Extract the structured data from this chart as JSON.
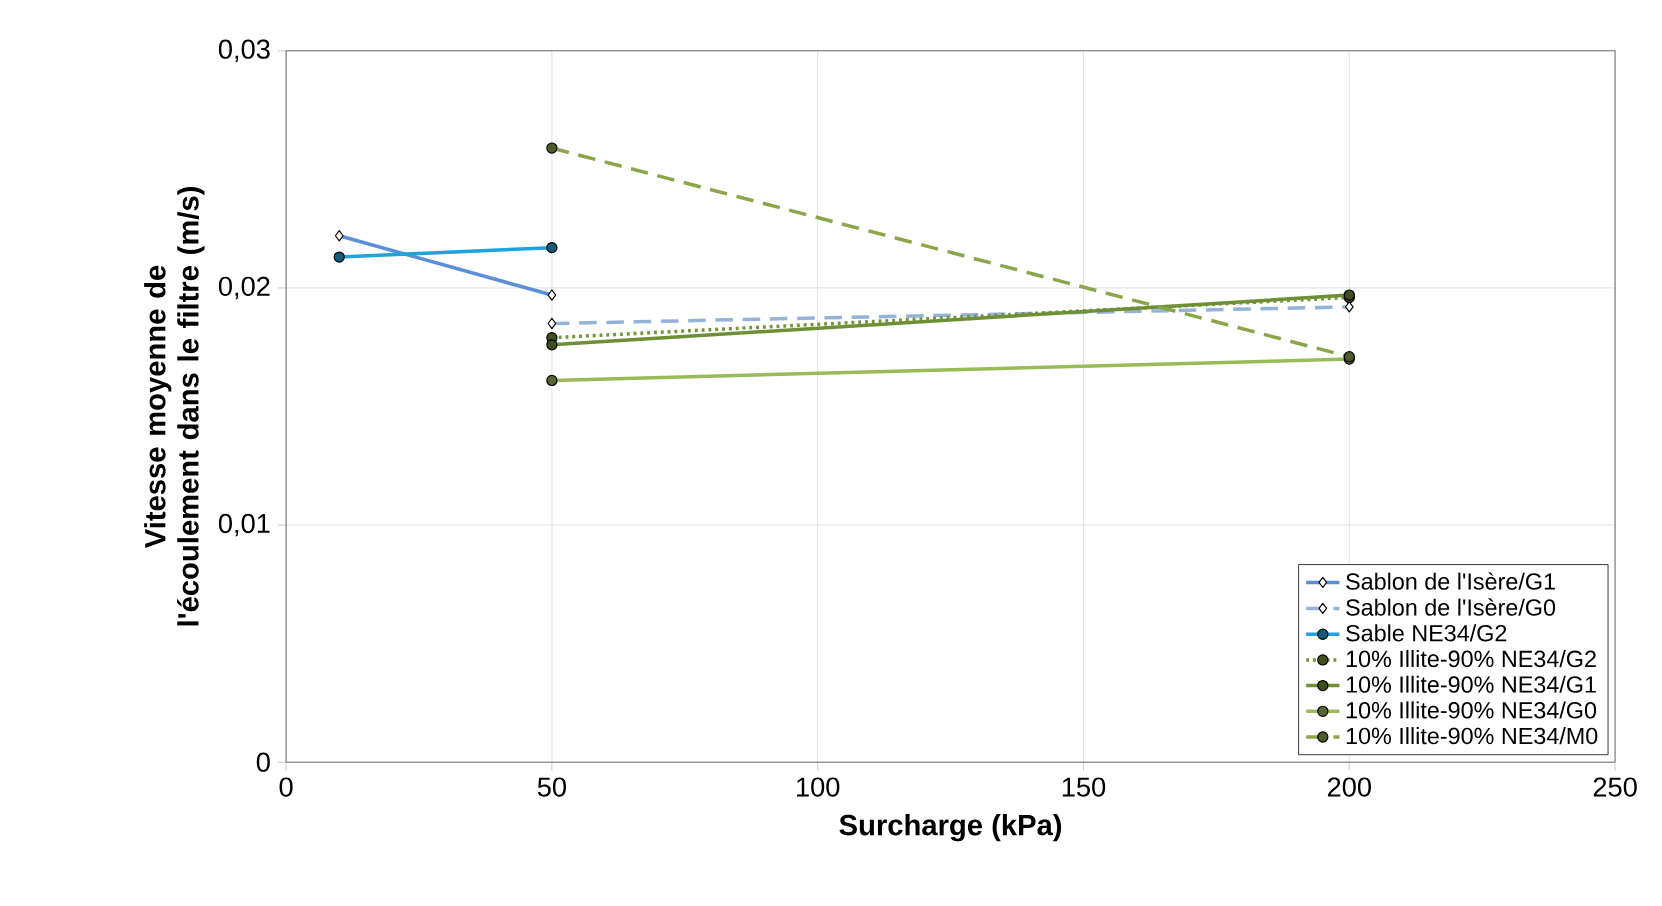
{
  "chart_data": {
    "type": "line",
    "xlabel": "Surcharge (kPa)",
    "ylabel": "Vitesse moyenne de l'écoulement dans le filtre (m/s)",
    "xlim": [
      0,
      250
    ],
    "xticks": [
      0,
      50,
      100,
      150,
      200,
      250
    ],
    "ylim": [
      0,
      0.03
    ],
    "yticks": [
      {
        "value": 0,
        "label": "0"
      },
      {
        "value": 0.01,
        "label": "0,01"
      },
      {
        "value": 0.02,
        "label": "0,02"
      },
      {
        "value": 0.03,
        "label": "0,03"
      }
    ],
    "grid": true,
    "legend": "bottom right",
    "series": [
      {
        "name": "Sablon de l'Isère/G1",
        "color": "#5b8fd6",
        "x": [
          10,
          50
        ],
        "values": [
          0.0222,
          0.0197
        ],
        "marker": "diamond",
        "line_style": "solid"
      },
      {
        "name": "Sablon de l'Isère/G0",
        "color": "#95b3d7",
        "x": [
          50,
          200
        ],
        "values": [
          0.0185,
          0.0192
        ],
        "marker": "diamond",
        "line_style": "dashed"
      },
      {
        "name": "Sable NE34/G2",
        "color": "#1fa3dc",
        "x": [
          10,
          50
        ],
        "values": [
          0.0213,
          0.0217
        ],
        "marker": "circle",
        "line_style": "solid"
      },
      {
        "name": "10% Illite-90% NE34/G2",
        "color": "#77933c",
        "x": [
          50,
          200
        ],
        "values": [
          0.0179,
          0.0196
        ],
        "marker": "circle",
        "line_style": "dotted"
      },
      {
        "name": "10% Illite-90% NE34/G1",
        "color": "#6f8f35",
        "x": [
          50,
          200
        ],
        "values": [
          0.0176,
          0.0197
        ],
        "marker": "circle",
        "line_style": "solid"
      },
      {
        "name": "10% Illite-90% NE34/G0",
        "color": "#9bbb59",
        "x": [
          50,
          200
        ],
        "values": [
          0.0161,
          0.017
        ],
        "marker": "circle",
        "line_style": "solid"
      },
      {
        "name": "10% Illite-90% NE34/M0",
        "color": "#8aa64a",
        "x": [
          50,
          200
        ],
        "values": [
          0.0259,
          0.0171
        ],
        "marker": "circle",
        "line_style": "dashed"
      }
    ]
  }
}
